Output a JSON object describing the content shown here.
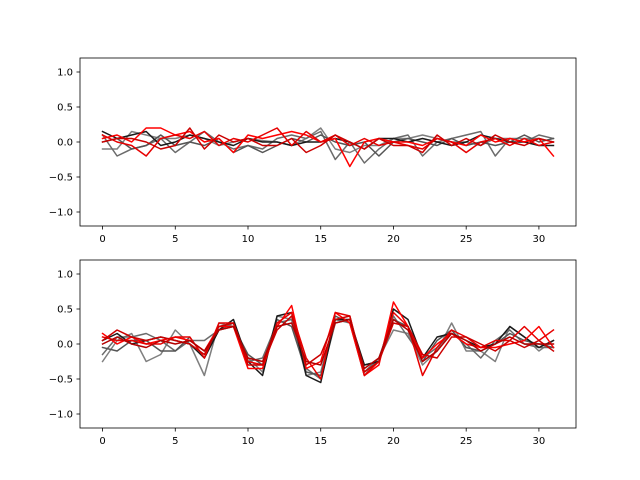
{
  "chart_data": [
    {
      "type": "line",
      "xlim": [
        -1.55,
        32.55
      ],
      "ylim": [
        -1.2,
        1.2
      ],
      "xticks": [
        0,
        5,
        10,
        15,
        20,
        25,
        30
      ],
      "yticks": [
        -1.0,
        -0.5,
        0.0,
        0.5,
        1.0
      ],
      "xtick_labels": [
        "0",
        "5",
        "10",
        "15",
        "20",
        "25",
        "30"
      ],
      "ytick_labels": [
        "−1.0",
        "−0.5",
        "0.0",
        "0.5",
        "1.0"
      ],
      "grid": false,
      "title": "",
      "xlabel": "",
      "ylabel": "",
      "x": [
        0,
        1,
        2,
        3,
        4,
        5,
        6,
        7,
        8,
        9,
        10,
        11,
        12,
        13,
        14,
        15,
        16,
        17,
        18,
        19,
        20,
        21,
        22,
        23,
        24,
        25,
        26,
        27,
        28,
        29,
        30,
        31
      ],
      "series": [
        {
          "color": "#7f7f7f",
          "values": [
            -0.1,
            -0.1,
            0.15,
            0.1,
            0.05,
            0.05,
            0.1,
            0.05,
            -0.05,
            0.0,
            0.05,
            0.02,
            0.0,
            -0.05,
            0.05,
            0.2,
            -0.1,
            -0.15,
            -0.05,
            -0.05,
            0.05,
            0.05,
            0.1,
            0.05,
            0.0,
            0.0,
            -0.05,
            0.05,
            0.05,
            0.05,
            0.05,
            0.0
          ]
        },
        {
          "color": "#6b6b6b",
          "values": [
            0.1,
            -0.2,
            -0.1,
            -0.05,
            0.05,
            -0.15,
            0.0,
            0.15,
            0.0,
            -0.1,
            -0.05,
            -0.1,
            0.05,
            0.1,
            0.05,
            0.15,
            -0.25,
            0.0,
            -0.3,
            -0.1,
            0.05,
            0.1,
            -0.2,
            0.0,
            0.05,
            0.1,
            0.15,
            -0.2,
            0.05,
            0.0,
            0.1,
            0.05
          ]
        },
        {
          "color": "#555555",
          "values": [
            0.0,
            0.05,
            -0.1,
            -0.05,
            0.1,
            -0.05,
            0.0,
            -0.05,
            0.05,
            -0.15,
            -0.05,
            -0.15,
            -0.05,
            0.05,
            0.0,
            0.1,
            0.0,
            -0.05,
            0.0,
            -0.2,
            0.0,
            0.05,
            0.0,
            -0.05,
            0.05,
            -0.05,
            0.0,
            -0.05,
            0.0,
            0.1,
            0.0,
            0.05
          ]
        },
        {
          "color": "#1a1a1a",
          "values": [
            0.15,
            0.05,
            0.1,
            0.15,
            -0.05,
            0.0,
            0.1,
            0.05,
            0.0,
            -0.05,
            0.05,
            0.0,
            0.0,
            -0.05,
            0.0,
            0.0,
            0.05,
            0.0,
            -0.1,
            0.05,
            0.05,
            0.0,
            0.05,
            0.0,
            -0.05,
            0.0,
            0.1,
            0.05,
            0.0,
            0.0,
            -0.05,
            -0.05
          ]
        },
        {
          "color": "#ff0000",
          "values": [
            0.05,
            0.1,
            0.0,
            0.2,
            0.2,
            0.1,
            0.15,
            0.0,
            0.05,
            -0.15,
            0.1,
            0.05,
            0.1,
            0.15,
            0.1,
            0.0,
            0.05,
            -0.35,
            0.0,
            0.05,
            0.0,
            0.0,
            -0.05,
            0.05,
            0.0,
            -0.05,
            0.1,
            0.0,
            0.05,
            0.0,
            0.05,
            -0.2
          ]
        },
        {
          "color": "#e60000",
          "values": [
            0.1,
            0.0,
            -0.05,
            -0.2,
            0.05,
            0.1,
            0.05,
            0.15,
            -0.05,
            0.05,
            0.0,
            0.1,
            0.2,
            -0.05,
            0.15,
            0.0,
            0.1,
            -0.05,
            0.05,
            -0.05,
            0.0,
            -0.05,
            -0.1,
            0.05,
            0.0,
            -0.15,
            0.0,
            0.05,
            -0.05,
            0.05,
            -0.05,
            0.0
          ]
        },
        {
          "color": "#cc0000",
          "values": [
            0.0,
            0.05,
            0.05,
            0.0,
            -0.1,
            -0.05,
            0.2,
            -0.1,
            0.1,
            0.0,
            0.05,
            -0.05,
            -0.05,
            0.05,
            -0.15,
            -0.05,
            0.1,
            0.0,
            -0.1,
            0.05,
            -0.05,
            -0.05,
            -0.15,
            0.1,
            -0.05,
            0.05,
            -0.05,
            0.1,
            0.0,
            -0.05,
            0.05,
            0.0
          ]
        }
      ]
    },
    {
      "type": "line",
      "xlim": [
        -1.55,
        32.55
      ],
      "ylim": [
        -1.2,
        1.2
      ],
      "xticks": [
        0,
        5,
        10,
        15,
        20,
        25,
        30
      ],
      "yticks": [
        -1.0,
        -0.5,
        0.0,
        0.5,
        1.0
      ],
      "xtick_labels": [
        "0",
        "5",
        "10",
        "15",
        "20",
        "25",
        "30"
      ],
      "ytick_labels": [
        "−1.0",
        "−0.5",
        "0.0",
        "0.5",
        "1.0"
      ],
      "grid": false,
      "title": "",
      "xlabel": "",
      "ylabel": "",
      "x": [
        0,
        1,
        2,
        3,
        4,
        5,
        6,
        7,
        8,
        9,
        10,
        11,
        12,
        13,
        14,
        15,
        16,
        17,
        18,
        19,
        20,
        21,
        22,
        23,
        24,
        25,
        26,
        27,
        28,
        29,
        30,
        31
      ],
      "series": [
        {
          "color": "#7f7f7f",
          "values": [
            -0.25,
            0.05,
            0.15,
            -0.25,
            -0.15,
            0.2,
            0.0,
            -0.45,
            0.3,
            0.25,
            -0.2,
            -0.4,
            0.4,
            0.35,
            -0.45,
            -0.4,
            0.35,
            0.3,
            -0.45,
            -0.2,
            0.2,
            0.15,
            -0.3,
            -0.1,
            0.3,
            -0.1,
            -0.1,
            -0.25,
            0.25,
            0.1,
            -0.1,
            0.05
          ]
        },
        {
          "color": "#6b6b6b",
          "values": [
            -0.15,
            0.1,
            0.1,
            0.15,
            0.05,
            -0.1,
            0.05,
            0.05,
            0.2,
            0.3,
            -0.25,
            -0.2,
            0.3,
            0.35,
            -0.35,
            -0.5,
            0.3,
            0.35,
            -0.4,
            -0.2,
            0.4,
            0.1,
            -0.2,
            -0.05,
            0.15,
            0.0,
            -0.2,
            0.05,
            0.2,
            0.0,
            -0.05,
            -0.05
          ]
        },
        {
          "color": "#555555",
          "values": [
            -0.05,
            -0.1,
            0.05,
            0.05,
            -0.1,
            -0.1,
            0.1,
            -0.2,
            0.2,
            0.25,
            -0.15,
            -0.3,
            0.35,
            0.25,
            -0.4,
            -0.45,
            0.4,
            0.3,
            -0.3,
            -0.25,
            0.35,
            0.25,
            -0.25,
            0.05,
            0.2,
            -0.05,
            -0.1,
            0.0,
            0.15,
            0.05,
            0.0,
            -0.05
          ]
        },
        {
          "color": "#1a1a1a",
          "values": [
            0.05,
            0.15,
            0.0,
            0.05,
            0.1,
            0.05,
            0.0,
            -0.2,
            0.2,
            0.35,
            -0.25,
            -0.45,
            0.4,
            0.45,
            -0.45,
            -0.55,
            0.35,
            0.35,
            -0.3,
            -0.25,
            0.5,
            0.35,
            -0.2,
            0.1,
            0.15,
            0.05,
            -0.05,
            0.0,
            0.25,
            0.1,
            -0.05,
            0.05
          ]
        },
        {
          "color": "#ff0000",
          "values": [
            0.15,
            0.0,
            0.1,
            0.0,
            0.05,
            0.1,
            0.05,
            -0.1,
            0.25,
            0.25,
            -0.35,
            -0.35,
            0.25,
            0.55,
            -0.35,
            -0.25,
            0.45,
            0.3,
            -0.45,
            -0.3,
            0.6,
            0.25,
            -0.2,
            0.0,
            0.15,
            0.0,
            -0.05,
            -0.05,
            0.0,
            0.05,
            0.25,
            -0.05
          ]
        },
        {
          "color": "#e60000",
          "values": [
            0.1,
            0.05,
            0.05,
            0.0,
            0.0,
            0.1,
            0.1,
            -0.2,
            0.3,
            0.3,
            -0.25,
            -0.3,
            0.3,
            0.45,
            -0.2,
            -0.5,
            0.45,
            0.4,
            -0.45,
            -0.25,
            0.45,
            0.25,
            -0.45,
            -0.05,
            0.2,
            0.1,
            -0.05,
            0.05,
            0.05,
            0.25,
            0.05,
            0.2
          ]
        },
        {
          "color": "#cc0000",
          "values": [
            0.05,
            0.2,
            0.1,
            0.05,
            0.1,
            0.05,
            0.0,
            -0.15,
            0.25,
            0.3,
            -0.3,
            -0.3,
            0.2,
            0.4,
            -0.3,
            -0.15,
            0.35,
            0.4,
            -0.4,
            -0.25,
            0.3,
            0.25,
            -0.15,
            -0.2,
            0.1,
            0.1,
            0.0,
            -0.1,
            0.05,
            -0.05,
            0.05,
            -0.1
          ]
        },
        {
          "color": "#b30000",
          "values": [
            0.0,
            0.1,
            0.0,
            -0.05,
            0.05,
            0.0,
            0.05,
            -0.1,
            0.2,
            0.25,
            -0.2,
            -0.25,
            0.25,
            0.3,
            -0.25,
            -0.3,
            0.3,
            0.35,
            -0.35,
            -0.2,
            0.35,
            0.2,
            -0.25,
            -0.1,
            0.15,
            0.05,
            -0.1,
            0.0,
            0.1,
            0.0,
            0.0,
            0.0
          ]
        }
      ]
    }
  ]
}
